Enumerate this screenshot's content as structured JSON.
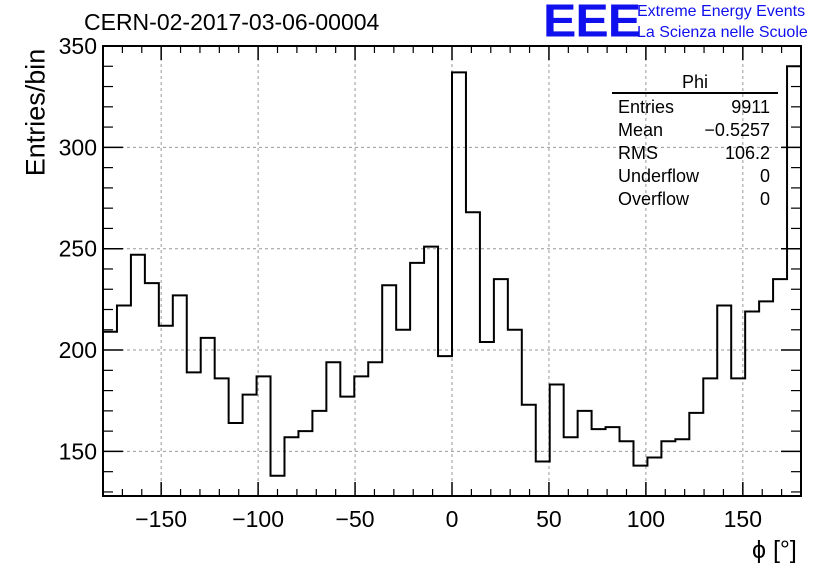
{
  "header": {
    "title": "CERN-02-2017-03-06-00004"
  },
  "logo": {
    "mark": "EEE",
    "line1": "Extreme Energy Events",
    "line2": "La Scienza nelle Scuole",
    "color": "#1010ee"
  },
  "stats": {
    "title": "Phi",
    "rows": [
      {
        "label": "Entries",
        "value": "9911"
      },
      {
        "label": "Mean",
        "value": "−0.5257"
      },
      {
        "label": "RMS",
        "value": "106.2"
      },
      {
        "label": "Underflow",
        "value": "0"
      },
      {
        "label": "Overflow",
        "value": "0"
      }
    ]
  },
  "chart_data": {
    "type": "bar",
    "style": "step-histogram",
    "title": "CERN-02-2017-03-06-00004",
    "xlabel": "ϕ [°]",
    "ylabel": "Entries/bin",
    "xlim": [
      -180,
      180
    ],
    "ylim": [
      128,
      350
    ],
    "bin_width": 7.2,
    "x_ticks": [
      -150,
      -100,
      -50,
      0,
      50,
      100,
      150
    ],
    "x_tick_labels": [
      "−150",
      "−100",
      "−50",
      "0",
      "50",
      "100",
      "150"
    ],
    "y_ticks": [
      150,
      200,
      250,
      300,
      350
    ],
    "y_tick_labels": [
      "150",
      "200",
      "250",
      "300",
      "350"
    ],
    "grid": true,
    "line_color": "#000000",
    "values": [
      209,
      222,
      247,
      233,
      212,
      227,
      189,
      206,
      186,
      164,
      178,
      187,
      138,
      157,
      160,
      170,
      194,
      177,
      187,
      194,
      232,
      210,
      243,
      251,
      197,
      337,
      268,
      204,
      235,
      210,
      173,
      145,
      183,
      157,
      170,
      161,
      162,
      155,
      143,
      147,
      155,
      156,
      169,
      186,
      222,
      186,
      219,
      224,
      235,
      340
    ]
  }
}
